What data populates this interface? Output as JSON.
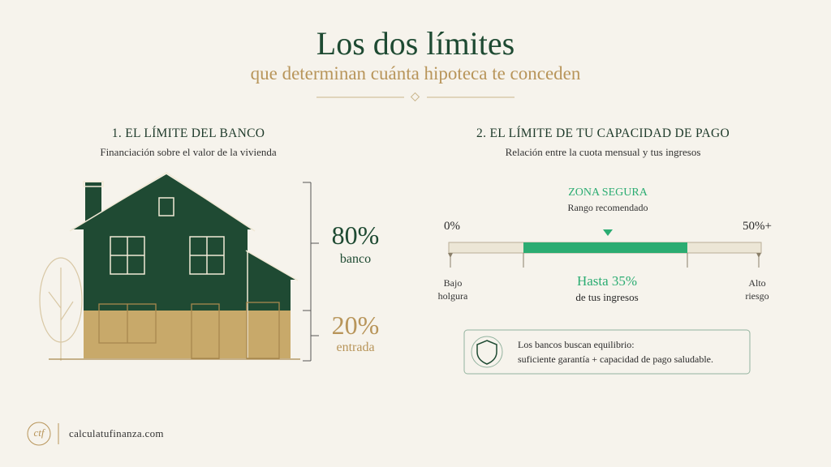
{
  "header": {
    "title": "Los dos límites",
    "subtitle": "que determinan cuánta hipoteca te conceden"
  },
  "left": {
    "heading": "1. EL LÍMITE DEL BANCO",
    "subheading": "Financiación sobre el valor de la vivienda",
    "bank": {
      "value": "80%",
      "label": "banco"
    },
    "down": {
      "value": "20%",
      "label": "entrada"
    }
  },
  "right": {
    "heading": "2. EL LÍMITE DE TU CAPACIDAD DE PAGO",
    "subheading": "Relación entre la cuota mensual y tus ingresos",
    "zone": {
      "title": "ZONA SEGURA",
      "subtitle": "Rango recomendado"
    },
    "scale": {
      "min": "0%",
      "max": "50%+",
      "low": [
        "Bajo",
        "holgura"
      ],
      "high": [
        "Alto",
        "riesgo"
      ],
      "target": "Hasta 35%",
      "target_note": "de tus ingresos"
    },
    "note": [
      "Los bancos buscan equilibrio:",
      "suficiente garantía + capacidad de pago saludable."
    ]
  },
  "footer": {
    "logo": "ctf",
    "site": "calculatufinanza.com"
  }
}
